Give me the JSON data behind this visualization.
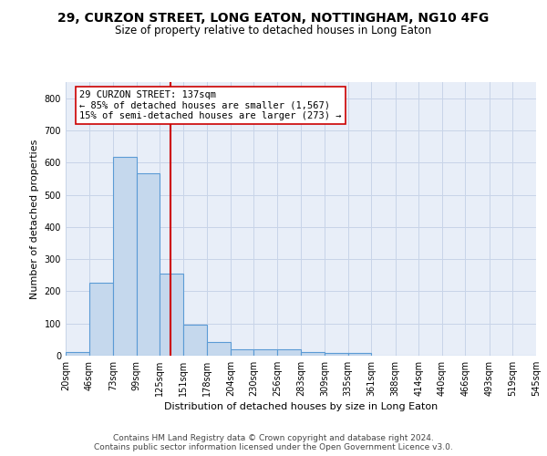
{
  "title": "29, CURZON STREET, LONG EATON, NOTTINGHAM, NG10 4FG",
  "subtitle": "Size of property relative to detached houses in Long Eaton",
  "xlabel": "Distribution of detached houses by size in Long Eaton",
  "ylabel": "Number of detached properties",
  "bar_edges": [
    20,
    46,
    73,
    99,
    125,
    151,
    178,
    204,
    230,
    256,
    283,
    309,
    335,
    361,
    388,
    414,
    440,
    466,
    493,
    519,
    545
  ],
  "bar_heights": [
    10,
    228,
    618,
    568,
    255,
    95,
    43,
    20,
    20,
    20,
    10,
    8,
    8,
    0,
    0,
    0,
    0,
    0,
    0,
    0
  ],
  "bar_color": "#c5d8ed",
  "bar_edge_color": "#5b9bd5",
  "bar_linewidth": 0.8,
  "vline_x": 137,
  "vline_color": "#cc0000",
  "vline_linewidth": 1.5,
  "annotation_text_line1": "29 CURZON STREET: 137sqm",
  "annotation_text_line2": "← 85% of detached houses are smaller (1,567)",
  "annotation_text_line3": "15% of semi-detached houses are larger (273) →",
  "annotation_fontsize": 7.5,
  "annotation_box_color": "white",
  "annotation_box_edgecolor": "#cc0000",
  "ylim": [
    0,
    850
  ],
  "xlim": [
    20,
    545
  ],
  "yticks": [
    0,
    100,
    200,
    300,
    400,
    500,
    600,
    700,
    800
  ],
  "grid_color": "#c8d4e8",
  "background_color": "#e8eef8",
  "footer_line1": "Contains HM Land Registry data © Crown copyright and database right 2024.",
  "footer_line2": "Contains public sector information licensed under the Open Government Licence v3.0.",
  "footer_fontsize": 6.5,
  "title_fontsize": 10,
  "subtitle_fontsize": 8.5,
  "xlabel_fontsize": 8,
  "ylabel_fontsize": 8,
  "tick_fontsize": 7
}
